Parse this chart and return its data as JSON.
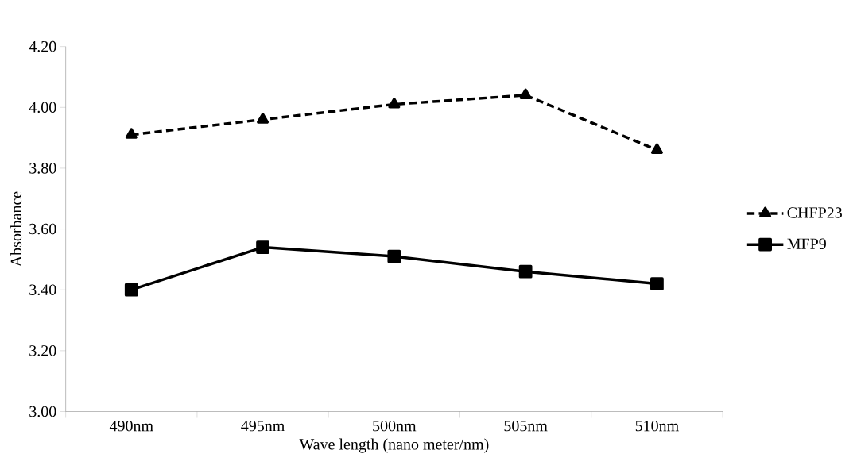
{
  "chart_data": {
    "type": "line",
    "xlabel": "Wave length (nano meter/nm)",
    "ylabel": "Absorbance",
    "categories": [
      "490nm",
      "495nm",
      "500nm",
      "505nm",
      "510nm"
    ],
    "series": [
      {
        "name": "CHFP23",
        "color": "#000000",
        "values": [
          3.91,
          3.96,
          4.01,
          4.04,
          3.86
        ],
        "marker": "triangle",
        "line_style": "dashed"
      },
      {
        "name": "MFP9",
        "color": "#000000",
        "values": [
          3.4,
          3.54,
          3.51,
          3.46,
          3.42
        ],
        "marker": "square",
        "line_style": "solid"
      }
    ],
    "ylim": [
      3.0,
      4.2
    ],
    "yticks": [
      {
        "value": 3.0,
        "label": "3.00"
      },
      {
        "value": 3.2,
        "label": "3.20"
      },
      {
        "value": 3.4,
        "label": "3.40"
      },
      {
        "value": 3.6,
        "label": "3.60"
      },
      {
        "value": 3.8,
        "label": "3.80"
      },
      {
        "value": 4.0,
        "label": "4.00"
      },
      {
        "value": 4.2,
        "label": "4.20"
      }
    ],
    "grid": false,
    "legend": "right"
  }
}
